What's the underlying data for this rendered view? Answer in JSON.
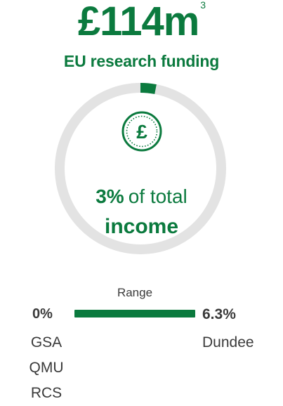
{
  "headline": {
    "amount": "£114m",
    "footnote": "3"
  },
  "subheadline": "EU research funding",
  "share": {
    "value_text": "3%",
    "suffix": "of total",
    "line2": "income",
    "fraction": 0.03
  },
  "icon": "pound-coin-icon",
  "range": {
    "title": "Range",
    "min": {
      "value": "0%",
      "institutions": [
        "GSA",
        "QMU",
        "RCS"
      ]
    },
    "max": {
      "value": "6.3%",
      "institutions": [
        "Dundee"
      ]
    }
  },
  "colors": {
    "accent": "#0b7a3e",
    "track": "#e3e3e3",
    "text": "#3a3a3a"
  }
}
